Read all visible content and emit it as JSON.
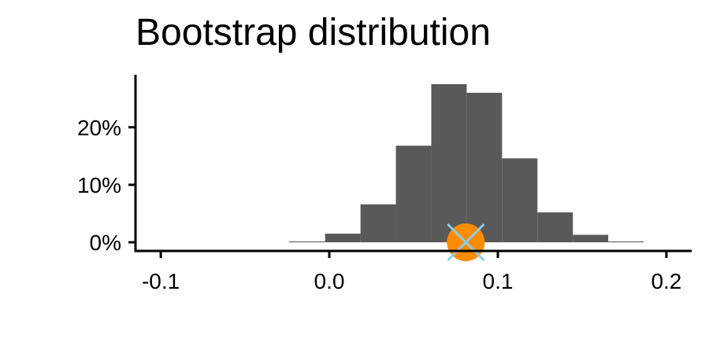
{
  "chart_data": {
    "type": "bar",
    "title": "Bootstrap distribution",
    "xlabel": "",
    "ylabel": "",
    "xlim": [
      -0.115,
      0.215
    ],
    "ylim": [
      0,
      0.29
    ],
    "x_ticks": [
      {
        "value": -0.1,
        "label": "-0.1"
      },
      {
        "value": 0.0,
        "label": "0.0"
      },
      {
        "value": 0.1,
        "label": "0.1"
      },
      {
        "value": 0.2,
        "label": "0.2"
      }
    ],
    "y_ticks": [
      {
        "value": 0.0,
        "label": "0%"
      },
      {
        "value": 0.1,
        "label": "10%"
      },
      {
        "value": 0.2,
        "label": "20%"
      }
    ],
    "bins": [
      {
        "x0": -0.024,
        "x1": -0.0025,
        "y": 0.0015
      },
      {
        "x0": -0.0025,
        "x1": 0.0185,
        "y": 0.015
      },
      {
        "x0": 0.0185,
        "x1": 0.0395,
        "y": 0.066
      },
      {
        "x0": 0.0395,
        "x1": 0.0605,
        "y": 0.168
      },
      {
        "x0": 0.0605,
        "x1": 0.0815,
        "y": 0.275
      },
      {
        "x0": 0.0815,
        "x1": 0.1025,
        "y": 0.26
      },
      {
        "x0": 0.1025,
        "x1": 0.1235,
        "y": 0.146
      },
      {
        "x0": 0.1235,
        "x1": 0.1445,
        "y": 0.052
      },
      {
        "x0": 0.1445,
        "x1": 0.1655,
        "y": 0.013
      },
      {
        "x0": 0.1655,
        "x1": 0.1865,
        "y": 0.0015
      }
    ],
    "point_estimate": {
      "x": 0.081,
      "y": 0.0,
      "color": "#FF8C00"
    },
    "cross_marker": {
      "x": 0.081,
      "y": 0.0,
      "color": "#87CEEB"
    },
    "bar_color": "#595959",
    "grid": false
  }
}
